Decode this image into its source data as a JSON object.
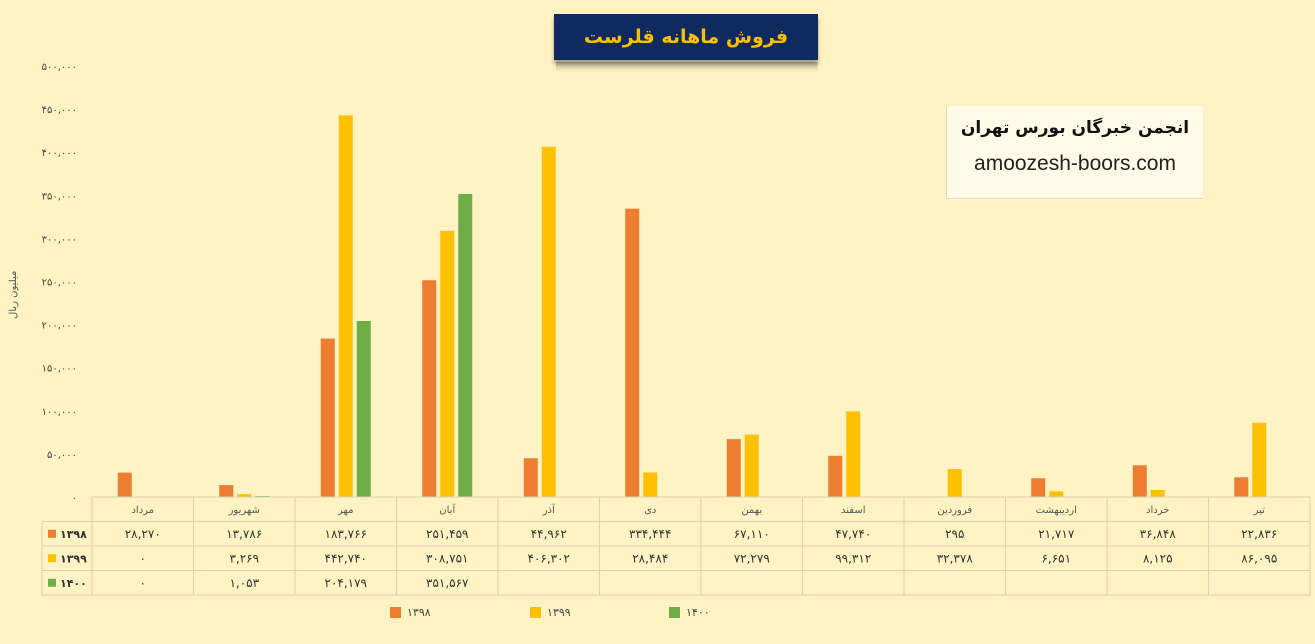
{
  "header": {
    "title": "فروش ماهانه قلرست",
    "org_name": "انجمن خبرگان بورس تهران",
    "website": "amoozesh-boors.com"
  },
  "colors": {
    "background": "#fff3c4",
    "s1398": "#ed7d31",
    "s1399": "#ffc000",
    "s1400": "#70ad47",
    "title_bg": "#0f2a5e",
    "title_fg": "#ffc000"
  },
  "chart_data": {
    "type": "bar",
    "title": "فروش ماهانه قلرست",
    "ylabel": "میلیون ریال",
    "ylim": [
      0,
      500000
    ],
    "y_ticks": [
      0,
      50000,
      100000,
      150000,
      200000,
      250000,
      300000,
      350000,
      400000,
      450000,
      500000
    ],
    "y_tick_labels": [
      "۰",
      "۵۰,۰۰۰",
      "۱۰۰,۰۰۰",
      "۱۵۰,۰۰۰",
      "۲۰۰,۰۰۰",
      "۲۵۰,۰۰۰",
      "۳۰۰,۰۰۰",
      "۳۵۰,۰۰۰",
      "۴۰۰,۰۰۰",
      "۴۵۰,۰۰۰",
      "۵۰۰,۰۰۰"
    ],
    "categories": [
      "مرداد",
      "شهریور",
      "مهر",
      "آبان",
      "آذر",
      "دی",
      "بهمن",
      "اسفند",
      "فروردین",
      "اردیبهشت",
      "خرداد",
      "تیر"
    ],
    "legend_position": "bottom",
    "series": [
      {
        "name": "۱۳۹۸",
        "values": [
          28270,
          13786,
          183766,
          251459,
          44962,
          334444,
          67110,
          47740,
          295,
          21717,
          36848,
          22836
        ],
        "labels": [
          "۲۸,۲۷۰",
          "۱۳,۷۸۶",
          "۱۸۳,۷۶۶",
          "۲۵۱,۴۵۹",
          "۴۴,۹۶۲",
          "۳۳۴,۴۴۴",
          "۶۷,۱۱۰",
          "۴۷,۷۴۰",
          "۲۹۵",
          "۲۱,۷۱۷",
          "۳۶,۸۴۸",
          "۲۲,۸۳۶"
        ]
      },
      {
        "name": "۱۳۹۹",
        "values": [
          0,
          3269,
          442740,
          308751,
          406302,
          28484,
          72279,
          99312,
          32378,
          6651,
          8125,
          86095
        ],
        "labels": [
          "۰",
          "۳,۲۶۹",
          "۴۴۲,۷۴۰",
          "۳۰۸,۷۵۱",
          "۴۰۶,۳۰۲",
          "۲۸,۴۸۴",
          "۷۲,۲۷۹",
          "۹۹,۳۱۲",
          "۳۲,۳۷۸",
          "۶,۶۵۱",
          "۸,۱۲۵",
          "۸۶,۰۹۵"
        ]
      },
      {
        "name": "۱۴۰۰",
        "values": [
          0,
          1053,
          204179,
          351567,
          null,
          null,
          null,
          null,
          null,
          null,
          null,
          null
        ],
        "labels": [
          "۰",
          "۱,۰۵۳",
          "۲۰۴,۱۷۹",
          "۳۵۱,۵۶۷",
          "",
          "",
          "",
          "",
          "",
          "",
          "",
          ""
        ]
      }
    ]
  }
}
